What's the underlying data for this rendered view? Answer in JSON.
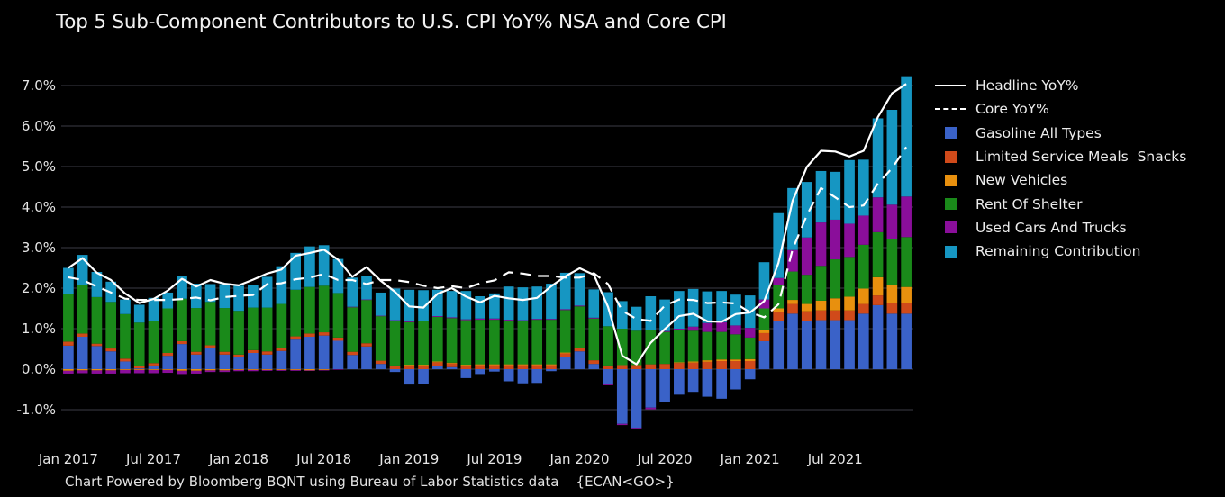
{
  "chart_data": {
    "type": "bar",
    "stacked": true,
    "title": "Top 5 Sub-Component Contributors to U.S. CPI YoY% NSA and Core CPI",
    "xlabel": "",
    "ylabel": "",
    "ylim": [
      -1.5,
      7.2
    ],
    "yticks": [
      -1.0,
      0.0,
      1.0,
      2.0,
      3.0,
      4.0,
      5.0,
      6.0,
      7.0
    ],
    "ytick_labels": [
      "-1.0%",
      "0.0%",
      "1.0%",
      "2.0%",
      "3.0%",
      "4.0%",
      "5.0%",
      "6.0%",
      "7.0%"
    ],
    "xtick_labels": [
      "Jan 2017",
      "Jul 2017",
      "Jan 2018",
      "Jul 2018",
      "Jan 2019",
      "Jul 2019",
      "Jan 2020",
      "Jul 2020",
      "Jan 2021",
      "Jul 2021"
    ],
    "xtick_indices": [
      0,
      6,
      12,
      18,
      24,
      30,
      36,
      42,
      48,
      54
    ],
    "grid": true,
    "legend_position": "right",
    "categories": [
      "2017-01",
      "2017-02",
      "2017-03",
      "2017-04",
      "2017-05",
      "2017-06",
      "2017-07",
      "2017-08",
      "2017-09",
      "2017-10",
      "2017-11",
      "2017-12",
      "2018-01",
      "2018-02",
      "2018-03",
      "2018-04",
      "2018-05",
      "2018-06",
      "2018-07",
      "2018-08",
      "2018-09",
      "2018-10",
      "2018-11",
      "2018-12",
      "2019-01",
      "2019-02",
      "2019-03",
      "2019-04",
      "2019-05",
      "2019-06",
      "2019-07",
      "2019-08",
      "2019-09",
      "2019-10",
      "2019-11",
      "2019-12",
      "2020-01",
      "2020-02",
      "2020-03",
      "2020-04",
      "2020-05",
      "2020-06",
      "2020-07",
      "2020-08",
      "2020-09",
      "2020-10",
      "2020-11",
      "2020-12",
      "2021-01",
      "2021-02",
      "2021-03",
      "2021-04",
      "2021-05",
      "2021-06",
      "2021-07",
      "2021-08",
      "2021-09",
      "2021-10",
      "2021-11",
      "2021-12"
    ],
    "series": [
      {
        "name": "Gasoline All Types",
        "color": "#3a62c8",
        "kind": "bar",
        "values": [
          0.58,
          0.8,
          0.57,
          0.44,
          0.19,
          0.02,
          0.09,
          0.33,
          0.62,
          0.36,
          0.52,
          0.36,
          0.29,
          0.4,
          0.36,
          0.45,
          0.73,
          0.8,
          0.83,
          0.7,
          0.35,
          0.56,
          0.13,
          -0.07,
          -0.38,
          -0.37,
          0.08,
          0.05,
          -0.22,
          -0.12,
          -0.06,
          -0.3,
          -0.35,
          -0.34,
          -0.05,
          0.3,
          0.44,
          0.13,
          -0.38,
          -1.35,
          -1.45,
          -0.95,
          -0.82,
          -0.63,
          -0.56,
          -0.68,
          -0.73,
          -0.5,
          -0.25,
          0.69,
          1.2,
          1.37,
          1.19,
          1.21,
          1.21,
          1.21,
          1.37,
          1.58,
          1.37,
          1.37
        ]
      },
      {
        "name": "Limited Service Meals  Snacks",
        "color": "#d04a1a",
        "kind": "bar",
        "values": [
          0.1,
          0.08,
          0.06,
          0.07,
          0.07,
          0.06,
          0.06,
          0.07,
          0.07,
          0.07,
          0.07,
          0.07,
          0.07,
          0.07,
          0.08,
          0.08,
          0.08,
          0.08,
          0.08,
          0.08,
          0.08,
          0.08,
          0.08,
          0.08,
          0.09,
          0.09,
          0.09,
          0.09,
          0.09,
          0.1,
          0.1,
          0.1,
          0.1,
          0.1,
          0.1,
          0.09,
          0.09,
          0.09,
          0.09,
          0.1,
          0.1,
          0.12,
          0.13,
          0.15,
          0.16,
          0.18,
          0.2,
          0.2,
          0.2,
          0.2,
          0.22,
          0.24,
          0.24,
          0.24,
          0.24,
          0.24,
          0.24,
          0.24,
          0.26,
          0.26
        ]
      },
      {
        "name": "New Vehicles",
        "color": "#e8900e",
        "kind": "bar",
        "values": [
          -0.04,
          -0.03,
          -0.03,
          -0.03,
          -0.02,
          -0.02,
          -0.02,
          -0.02,
          -0.04,
          -0.04,
          -0.03,
          -0.03,
          -0.02,
          -0.02,
          -0.02,
          -0.02,
          -0.02,
          -0.03,
          -0.02,
          0.0,
          0.0,
          0.0,
          0.0,
          0.01,
          0.02,
          0.02,
          0.02,
          0.02,
          0.02,
          0.02,
          0.02,
          0.02,
          0.02,
          0.02,
          0.02,
          0.02,
          0.0,
          0.0,
          0.0,
          0.0,
          0.0,
          0.0,
          0.0,
          0.02,
          0.03,
          0.04,
          0.04,
          0.04,
          0.05,
          0.08,
          0.08,
          0.1,
          0.18,
          0.24,
          0.3,
          0.34,
          0.38,
          0.45,
          0.45,
          0.4
        ]
      },
      {
        "name": "Rent Of Shelter",
        "color": "#1a8a1a",
        "kind": "bar",
        "values": [
          1.18,
          1.2,
          1.15,
          1.15,
          1.1,
          1.07,
          1.05,
          1.1,
          1.05,
          1.08,
          1.07,
          1.08,
          1.08,
          1.05,
          1.08,
          1.08,
          1.15,
          1.15,
          1.15,
          1.1,
          1.1,
          1.07,
          1.1,
          1.1,
          1.05,
          1.07,
          1.1,
          1.1,
          1.1,
          1.1,
          1.1,
          1.08,
          1.07,
          1.1,
          1.1,
          1.05,
          1.02,
          1.03,
          0.97,
          0.9,
          0.85,
          0.84,
          0.79,
          0.79,
          0.76,
          0.7,
          0.68,
          0.62,
          0.53,
          0.53,
          0.57,
          0.7,
          0.72,
          0.86,
          0.96,
          0.98,
          1.08,
          1.11,
          1.14,
          1.23
        ]
      },
      {
        "name": "Used Cars And Trucks",
        "color": "#8a0e9a",
        "kind": "bar",
        "values": [
          -0.07,
          -0.07,
          -0.08,
          -0.08,
          -0.08,
          -0.08,
          -0.08,
          -0.07,
          -0.08,
          -0.07,
          -0.04,
          -0.04,
          -0.03,
          -0.03,
          -0.02,
          -0.02,
          -0.02,
          -0.01,
          -0.01,
          -0.01,
          0.01,
          0.01,
          0.01,
          0.02,
          0.02,
          0.02,
          0.02,
          0.02,
          0.02,
          0.03,
          0.03,
          0.02,
          0.02,
          0.02,
          0.02,
          0.02,
          0.02,
          0.02,
          -0.02,
          -0.03,
          -0.02,
          -0.04,
          0.02,
          0.04,
          0.1,
          0.22,
          0.24,
          0.22,
          0.24,
          0.22,
          0.18,
          0.53,
          0.92,
          1.07,
          0.98,
          0.82,
          0.72,
          0.86,
          0.84,
          1.0
        ]
      },
      {
        "name": "Remaining Contribution",
        "color": "#1696c2",
        "kind": "bar",
        "values": [
          0.64,
          0.74,
          0.62,
          0.5,
          0.36,
          0.44,
          0.56,
          0.39,
          0.57,
          0.6,
          0.44,
          0.59,
          0.62,
          0.56,
          0.76,
          0.93,
          0.91,
          1.0,
          1.0,
          0.84,
          0.72,
          0.58,
          0.57,
          0.78,
          0.78,
          0.75,
          0.65,
          0.65,
          0.7,
          0.55,
          0.62,
          0.82,
          0.81,
          0.8,
          0.87,
          0.9,
          0.8,
          0.7,
          0.84,
          0.68,
          0.59,
          0.84,
          0.78,
          0.93,
          0.93,
          0.78,
          0.77,
          0.76,
          0.8,
          0.92,
          1.6,
          1.53,
          1.37,
          1.27,
          1.18,
          1.57,
          1.38,
          1.95,
          2.34,
          2.97
        ]
      },
      {
        "name": "Headline YoY%",
        "color": "#ffffff",
        "kind": "line",
        "style": "solid",
        "values": [
          2.5,
          2.74,
          2.38,
          2.2,
          1.87,
          1.63,
          1.73,
          1.94,
          2.23,
          2.04,
          2.2,
          2.11,
          2.07,
          2.21,
          2.36,
          2.46,
          2.8,
          2.87,
          2.95,
          2.7,
          2.28,
          2.52,
          2.18,
          1.91,
          1.55,
          1.52,
          1.86,
          2.0,
          1.79,
          1.65,
          1.81,
          1.75,
          1.71,
          1.76,
          2.05,
          2.29,
          2.49,
          2.33,
          1.54,
          0.33,
          0.12,
          0.65,
          0.99,
          1.31,
          1.37,
          1.18,
          1.17,
          1.36,
          1.4,
          1.68,
          2.62,
          4.16,
          4.99,
          5.39,
          5.37,
          5.25,
          5.39,
          6.22,
          6.81,
          7.04
        ]
      },
      {
        "name": "Core YoY%",
        "color": "#ffffff",
        "kind": "line",
        "style": "dashed",
        "values": [
          2.27,
          2.2,
          2.04,
          1.89,
          1.74,
          1.71,
          1.71,
          1.71,
          1.73,
          1.77,
          1.7,
          1.78,
          1.81,
          1.83,
          2.1,
          2.12,
          2.22,
          2.26,
          2.35,
          2.2,
          2.2,
          2.1,
          2.2,
          2.2,
          2.15,
          2.06,
          2.0,
          2.05,
          2.0,
          2.12,
          2.19,
          2.39,
          2.36,
          2.3,
          2.3,
          2.26,
          2.26,
          2.37,
          2.1,
          1.44,
          1.24,
          1.19,
          1.57,
          1.72,
          1.71,
          1.63,
          1.65,
          1.62,
          1.4,
          1.28,
          1.6,
          2.96,
          3.8,
          4.47,
          4.24,
          4.0,
          4.04,
          4.58,
          4.96,
          5.48
        ]
      }
    ]
  },
  "footer": "Chart Powered by Bloomberg BQNT using Bureau of Labor Statistics data    {ECAN<GO>}"
}
